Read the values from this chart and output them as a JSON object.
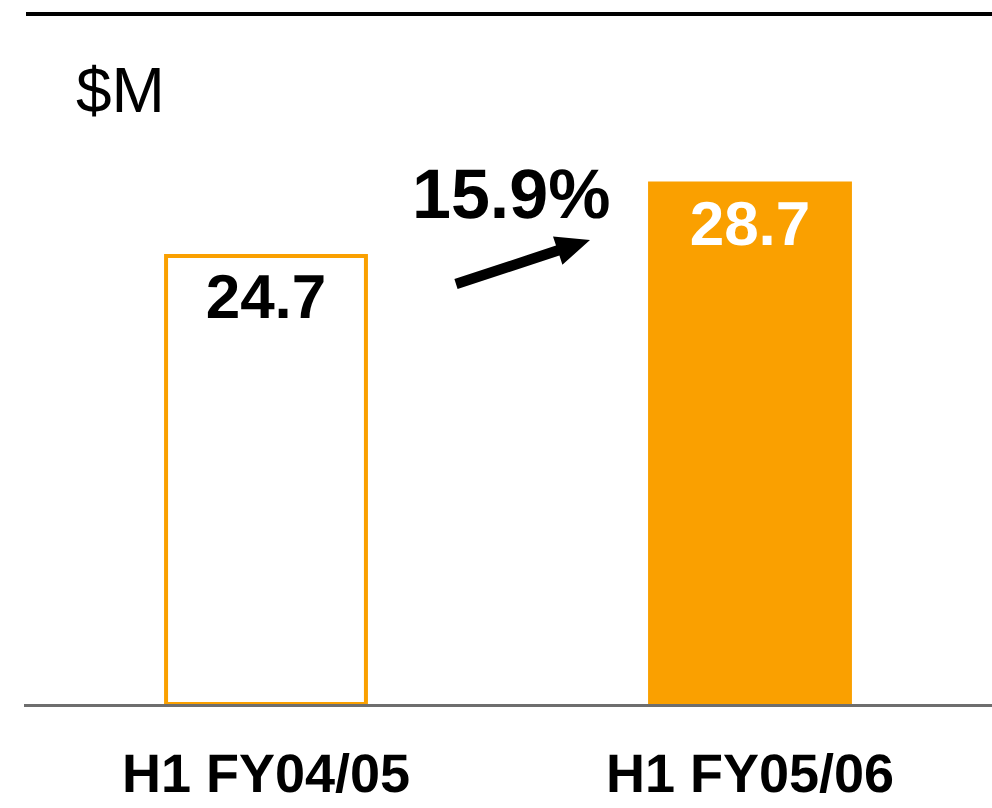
{
  "chart_data": {
    "type": "bar",
    "ylabel": "$M",
    "annotations": [
      "15.9%"
    ],
    "categories": [
      "H1 FY04/05",
      "H1 FY05/06"
    ],
    "values": [
      24.7,
      28.7
    ],
    "colors": [
      "#ffffff",
      "#faa000"
    ],
    "color": "#faa000",
    "data_labels": true
  }
}
